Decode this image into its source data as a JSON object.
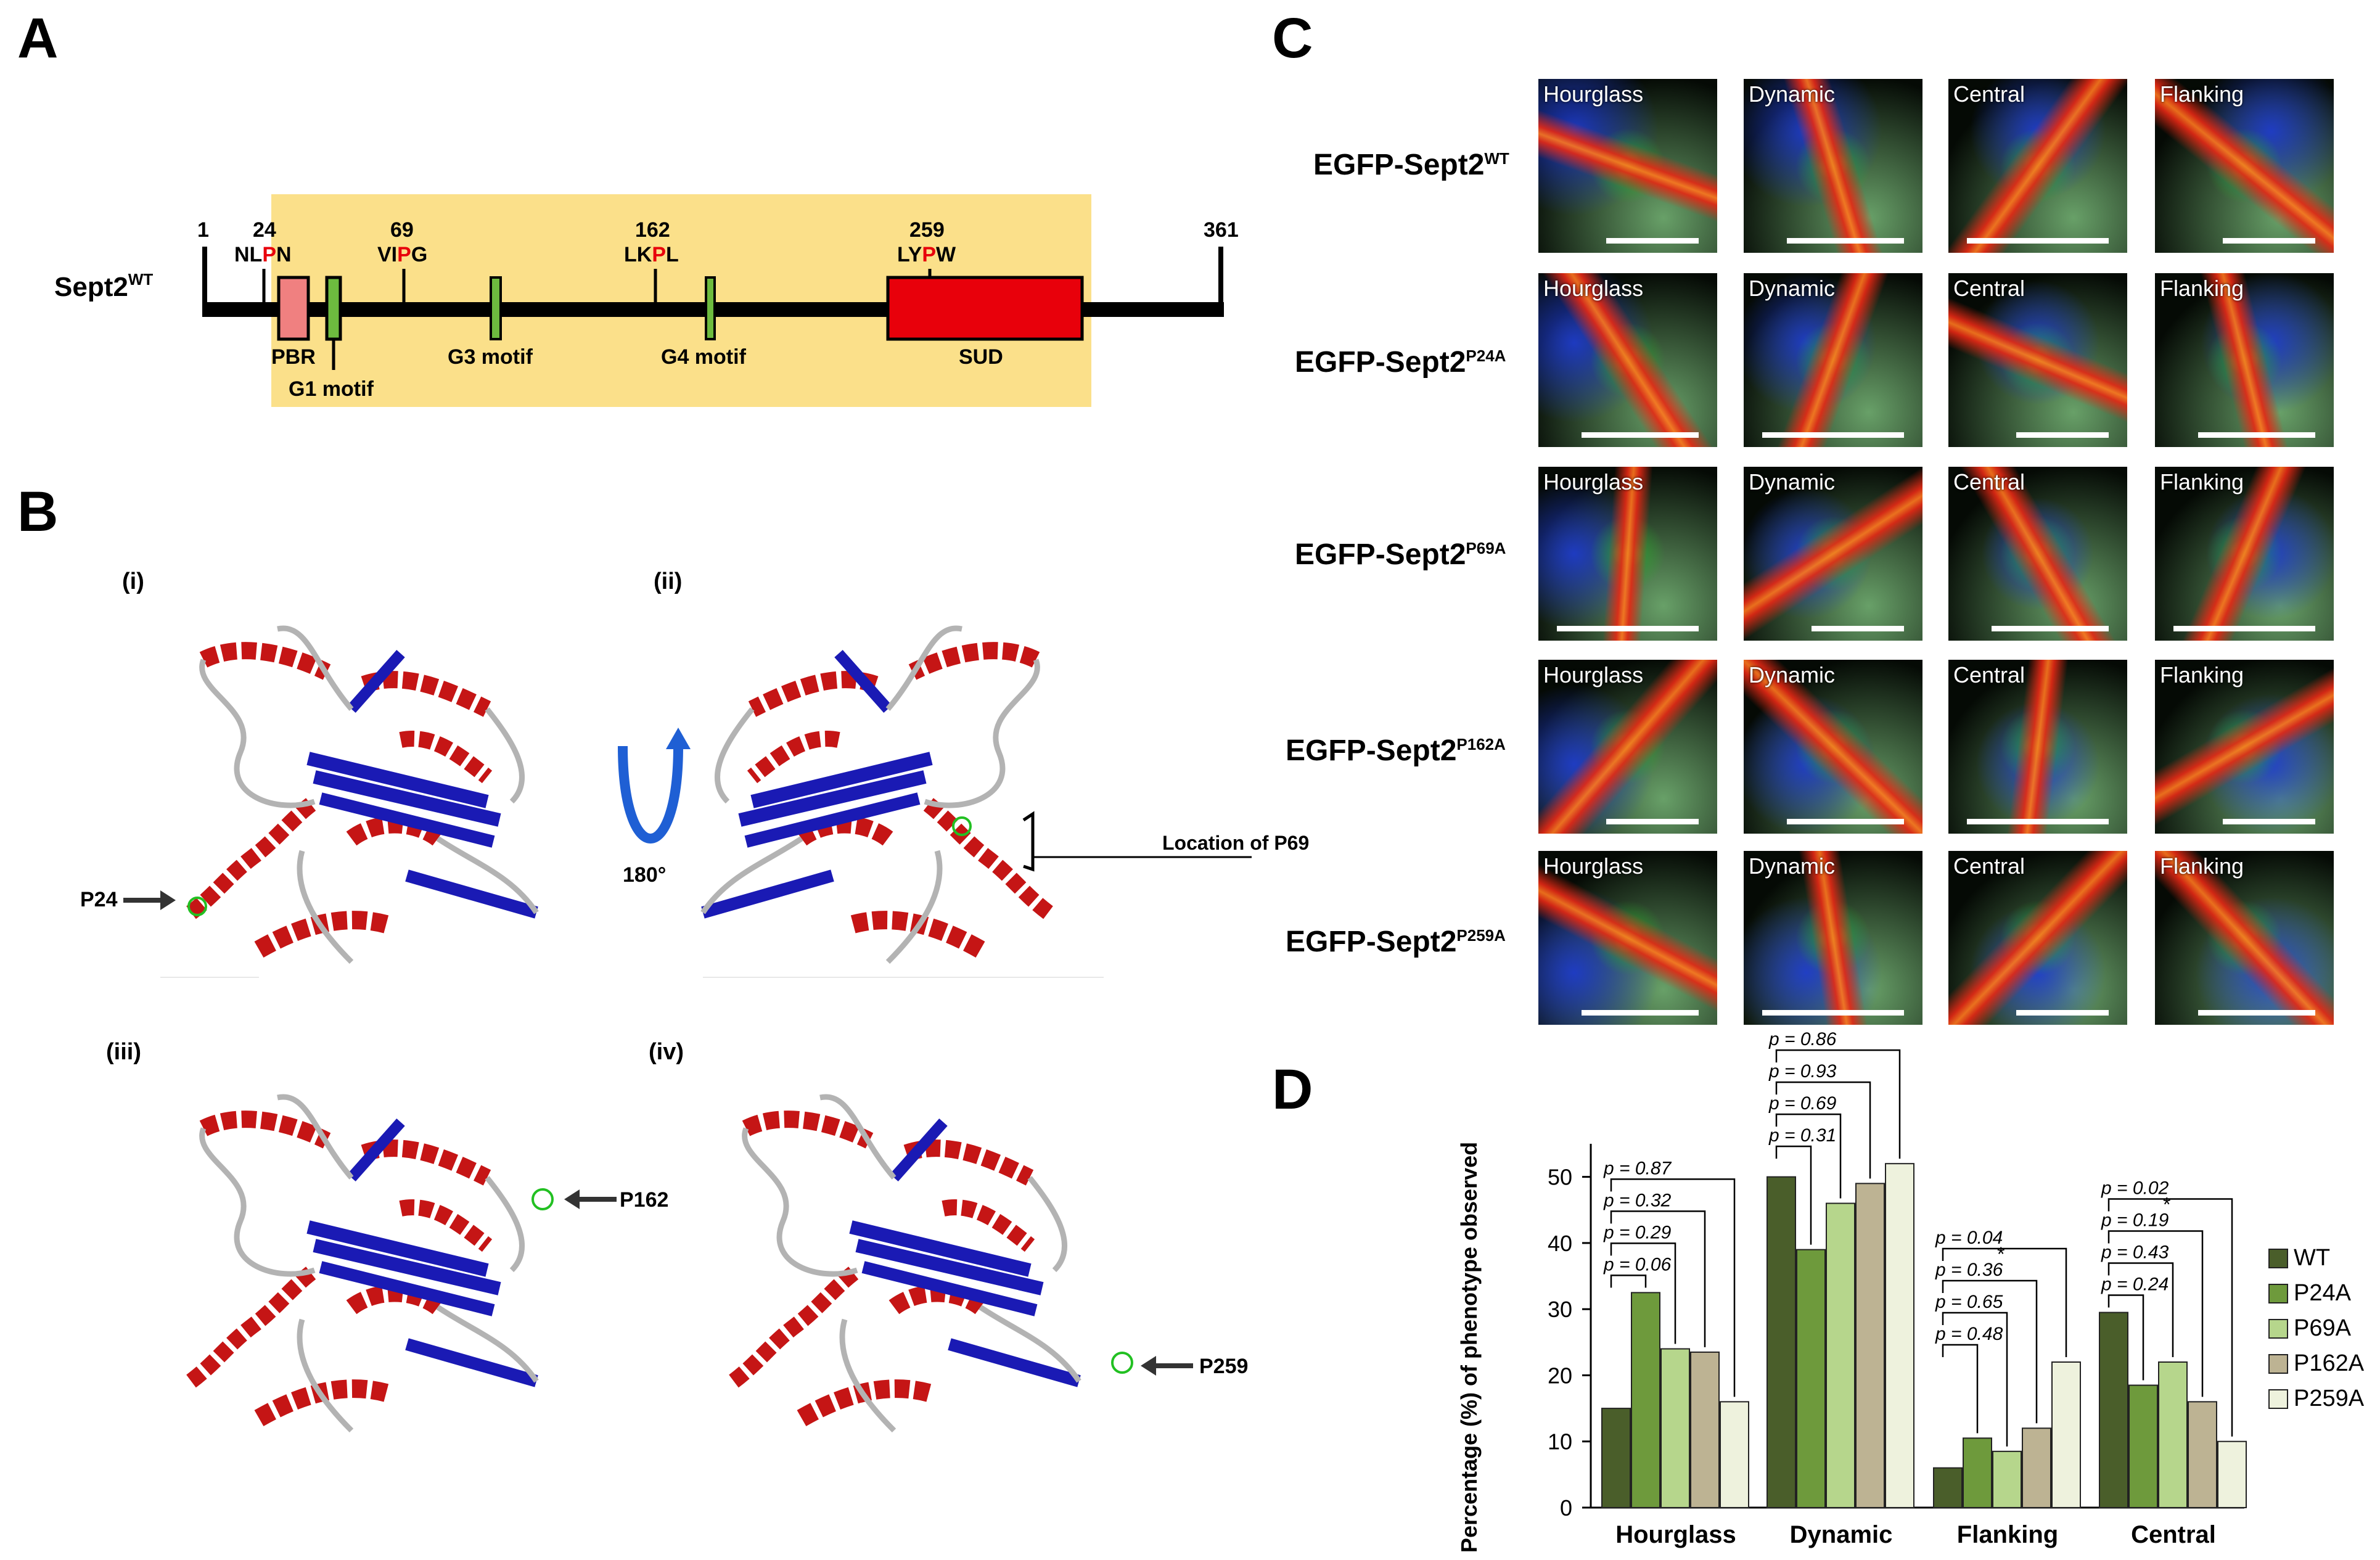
{
  "panels": {
    "a": "A",
    "b": "B",
    "c": "C",
    "d": "D"
  },
  "panel_a": {
    "protein_label": "Sept2",
    "protein_sup": "WT",
    "start_num": "1",
    "end_num": "361",
    "sites": [
      {
        "num": "24",
        "pre": "NL",
        "p": "P",
        "post": "N"
      },
      {
        "num": "69",
        "pre": "VI",
        "p": "P",
        "post": "G"
      },
      {
        "num": "162",
        "pre": "LK",
        "p": "P",
        "post": "L"
      },
      {
        "num": "259",
        "pre": "LY",
        "p": "P",
        "post": "W"
      }
    ],
    "domains": {
      "pbr": "PBR",
      "g1": "G1 motif",
      "g3": "G3 motif",
      "g4": "G4 motif",
      "sud": "SUD"
    },
    "colors": {
      "highlight": "#fbe08a",
      "pbr": "#f08080",
      "motif": "#6dbb3f",
      "sud": "#e8000b",
      "proline": "#e8000b"
    }
  },
  "panel_b": {
    "views": [
      "(i)",
      "(ii)",
      "(iii)",
      "(iv)"
    ],
    "rotation": "180°",
    "labels": {
      "p24": "P24",
      "p69": "Location of P69",
      "p162": "P162",
      "p259": "P259"
    }
  },
  "panel_c": {
    "columns": [
      "Hourglass",
      "Dynamic",
      "Central",
      "Flanking"
    ],
    "rows": [
      {
        "prefix": "EGFP-Sept2",
        "sup": "WT"
      },
      {
        "prefix": "EGFP-Sept2",
        "sup": "P24A"
      },
      {
        "prefix": "EGFP-Sept2",
        "sup": "P69A"
      },
      {
        "prefix": "EGFP-Sept2",
        "sup": "P162A"
      },
      {
        "prefix": "EGFP-Sept2",
        "sup": "P259A"
      }
    ]
  },
  "chart_data": {
    "type": "bar",
    "ylabel": "Percentage (%) of phenotype observed",
    "ylim": [
      0,
      55
    ],
    "yticks": [
      0,
      10,
      20,
      30,
      40,
      50
    ],
    "categories": [
      "Hourglass",
      "Dynamic",
      "Flanking",
      "Central"
    ],
    "series": [
      {
        "name": "WT",
        "color": "#4a5e2a",
        "values": [
          15,
          50,
          6,
          29.5
        ]
      },
      {
        "name": "P24A",
        "color": "#6e9a3c",
        "values": [
          32.5,
          39,
          10.5,
          18.5
        ]
      },
      {
        "name": "P69A",
        "color": "#b6d68c",
        "values": [
          24,
          46,
          8.5,
          22
        ]
      },
      {
        "name": "P162A",
        "color": "#bdb393",
        "values": [
          23.5,
          49,
          12,
          16
        ]
      },
      {
        "name": "P259A",
        "color": "#eef2dd",
        "values": [
          16,
          52,
          22,
          10
        ]
      }
    ],
    "legend": "right",
    "annotations": [
      {
        "group": "Hourglass",
        "texts": [
          "p = 0.06",
          "p = 0.29",
          "p = 0.32",
          "p = 0.87"
        ],
        "stars": []
      },
      {
        "group": "Dynamic",
        "texts": [
          "p = 0.31",
          "p = 0.69",
          "p = 0.93",
          "p = 0.86"
        ],
        "stars": []
      },
      {
        "group": "Flanking",
        "texts": [
          "p = 0.48",
          "p = 0.65",
          "p = 0.36",
          "p = 0.04"
        ],
        "stars": [
          "*"
        ]
      },
      {
        "group": "Central",
        "texts": [
          "p = 0.24",
          "p = 0.43",
          "p = 0.19",
          "p = 0.02"
        ],
        "stars": [
          "*"
        ]
      }
    ]
  }
}
